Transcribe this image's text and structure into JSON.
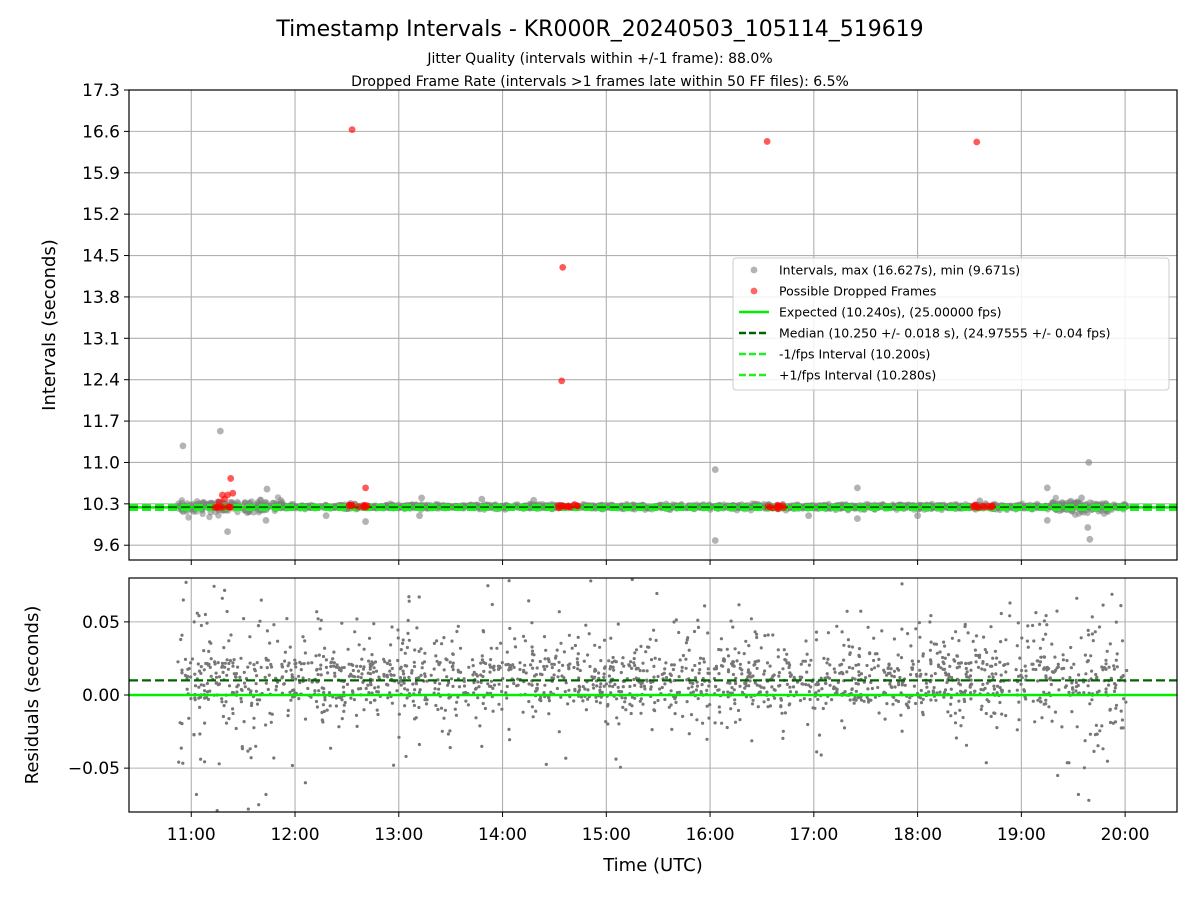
{
  "figure": {
    "title": "Timestamp Intervals - KR000R_20240503_105114_519619",
    "subtitle_1": "Jitter Quality (intervals within +/-1 frame): 88.0%",
    "subtitle_2": "Dropped Frame Rate (intervals >1 frames late within 50 FF files): 6.5%"
  },
  "chart_data": [
    {
      "type": "scatter",
      "panel": "top",
      "ylabel": "Intervals (seconds)",
      "xlabel": "",
      "x_units": "hours UTC",
      "xlim": [
        10.4,
        20.5
      ],
      "ylim": [
        9.35,
        17.3
      ],
      "yticks": [
        "9.6",
        "10.3",
        "11.0",
        "11.7",
        "12.4",
        "13.1",
        "13.8",
        "14.5",
        "15.2",
        "15.9",
        "16.6",
        "17.3"
      ],
      "grid": true,
      "legend_position": "center-right",
      "colors": {
        "intervals": "#808080",
        "dropped": "#ff0000",
        "expected": "#00ee00",
        "median": "#006400",
        "minus": "#22ee22",
        "plus": "#22ee22"
      },
      "legend": [
        {
          "key": "intervals",
          "label": "Intervals, max (16.627s), min (9.671s)",
          "marker": "dot"
        },
        {
          "key": "dropped",
          "label": "Possible Dropped Frames",
          "marker": "dot"
        },
        {
          "key": "expected",
          "label": "Expected (10.240s), (25.00000 fps)",
          "marker": "solid"
        },
        {
          "key": "median",
          "label": "Median (10.250 +/- 0.018 s), (24.97555 +/- 0.04 fps)",
          "marker": "dashed"
        },
        {
          "key": "minus",
          "label": "-1/fps Interval (10.200s)",
          "marker": "dashed"
        },
        {
          "key": "plus",
          "label": "+1/fps Interval (10.280s)",
          "marker": "dashed"
        }
      ],
      "hlines": [
        {
          "key": "expected",
          "y": 10.24,
          "dash": false
        },
        {
          "key": "median",
          "y": 10.25,
          "dash": true
        },
        {
          "key": "minus",
          "y": 10.2,
          "dash": true
        },
        {
          "key": "plus",
          "y": 10.28,
          "dash": true
        }
      ],
      "baseline": {
        "x_range": [
          10.87,
          20.02
        ],
        "median": 10.25,
        "spread": 0.02,
        "wide_spread_ranges": [
          [
            10.9,
            11.9
          ],
          [
            19.3,
            19.9
          ]
        ]
      },
      "outliers_intervals": [
        {
          "x": 10.92,
          "y": 11.28
        },
        {
          "x": 11.28,
          "y": 11.53
        },
        {
          "x": 11.35,
          "y": 9.83
        },
        {
          "x": 11.73,
          "y": 10.55
        },
        {
          "x": 11.72,
          "y": 10.02
        },
        {
          "x": 12.3,
          "y": 10.1
        },
        {
          "x": 12.68,
          "y": 10.0
        },
        {
          "x": 13.2,
          "y": 10.1
        },
        {
          "x": 13.22,
          "y": 10.4
        },
        {
          "x": 13.8,
          "y": 10.38
        },
        {
          "x": 14.3,
          "y": 10.36
        },
        {
          "x": 16.05,
          "y": 10.88
        },
        {
          "x": 16.05,
          "y": 9.68
        },
        {
          "x": 16.95,
          "y": 10.1
        },
        {
          "x": 17.42,
          "y": 10.57
        },
        {
          "x": 17.42,
          "y": 10.05
        },
        {
          "x": 18.0,
          "y": 10.1
        },
        {
          "x": 18.6,
          "y": 10.35
        },
        {
          "x": 19.25,
          "y": 10.57
        },
        {
          "x": 19.25,
          "y": 10.02
        },
        {
          "x": 19.65,
          "y": 11.0
        },
        {
          "x": 19.64,
          "y": 9.9
        },
        {
          "x": 19.66,
          "y": 9.7
        },
        {
          "x": 19.58,
          "y": 10.4
        }
      ],
      "dropped_frames": [
        {
          "x": 12.55,
          "y": 16.63
        },
        {
          "x": 14.58,
          "y": 14.3
        },
        {
          "x": 14.57,
          "y": 12.38
        },
        {
          "x": 16.55,
          "y": 16.43
        },
        {
          "x": 18.57,
          "y": 16.42
        },
        {
          "x": 11.38,
          "y": 10.73
        },
        {
          "x": 12.68,
          "y": 10.57
        },
        {
          "x": 11.3,
          "y": 10.45
        },
        {
          "x": 11.35,
          "y": 10.45
        },
        {
          "x": 11.4,
          "y": 10.48
        },
        {
          "x": 11.32,
          "y": 10.38
        },
        {
          "x": 11.27,
          "y": 10.33
        }
      ],
      "dropped_clusters": [
        {
          "x_range": [
            11.22,
            11.42
          ],
          "count": 8
        },
        {
          "x_range": [
            12.52,
            12.7
          ],
          "count": 10
        },
        {
          "x_range": [
            14.53,
            14.73
          ],
          "count": 12
        },
        {
          "x_range": [
            16.53,
            16.73
          ],
          "count": 10
        },
        {
          "x_range": [
            18.53,
            18.73
          ],
          "count": 12
        }
      ]
    },
    {
      "type": "scatter",
      "panel": "bottom",
      "ylabel": "Residuals (seconds)",
      "xlabel": "Time (UTC)",
      "xlim": [
        10.4,
        20.5
      ],
      "ylim": [
        -0.08,
        0.08
      ],
      "yticks": [
        {
          "value": -0.05,
          "label": "−0.05"
        },
        {
          "value": 0.0,
          "label": "0.00"
        },
        {
          "value": 0.05,
          "label": "0.05"
        }
      ],
      "xticks": [
        {
          "value": 11,
          "label": "11:00"
        },
        {
          "value": 12,
          "label": "12:00"
        },
        {
          "value": 13,
          "label": "13:00"
        },
        {
          "value": 14,
          "label": "14:00"
        },
        {
          "value": 15,
          "label": "15:00"
        },
        {
          "value": 16,
          "label": "16:00"
        },
        {
          "value": 17,
          "label": "17:00"
        },
        {
          "value": 18,
          "label": "18:00"
        },
        {
          "value": 19,
          "label": "19:00"
        },
        {
          "value": 20,
          "label": "20:00"
        }
      ],
      "grid": true,
      "colors": {
        "points": "#777777",
        "zero": "#00ee00",
        "median": "#006400"
      },
      "hlines": [
        {
          "key": "zero",
          "y": 0.0,
          "dash": false
        },
        {
          "key": "median",
          "y": 0.01,
          "dash": true
        }
      ],
      "residual_cloud": {
        "x_range": [
          10.87,
          20.02
        ],
        "n_points": 1900,
        "typical_range": [
          -0.02,
          0.06
        ],
        "quantised_levels": [
          0.0,
          0.01,
          0.02
        ],
        "extremes": [
          {
            "x": 11.05,
            "y": -0.068
          },
          {
            "x": 11.25,
            "y": -0.079
          },
          {
            "x": 11.55,
            "y": -0.078
          },
          {
            "x": 11.65,
            "y": -0.075
          },
          {
            "x": 11.72,
            "y": -0.068
          },
          {
            "x": 12.1,
            "y": -0.06
          },
          {
            "x": 12.95,
            "y": -0.048
          },
          {
            "x": 13.07,
            "y": -0.042
          },
          {
            "x": 19.35,
            "y": -0.055
          },
          {
            "x": 19.55,
            "y": -0.068
          },
          {
            "x": 19.65,
            "y": -0.072
          },
          {
            "x": 10.95,
            "y": 0.077
          },
          {
            "x": 14.85,
            "y": 0.078
          },
          {
            "x": 15.25,
            "y": 0.079
          },
          {
            "x": 17.85,
            "y": 0.076
          }
        ]
      }
    }
  ]
}
